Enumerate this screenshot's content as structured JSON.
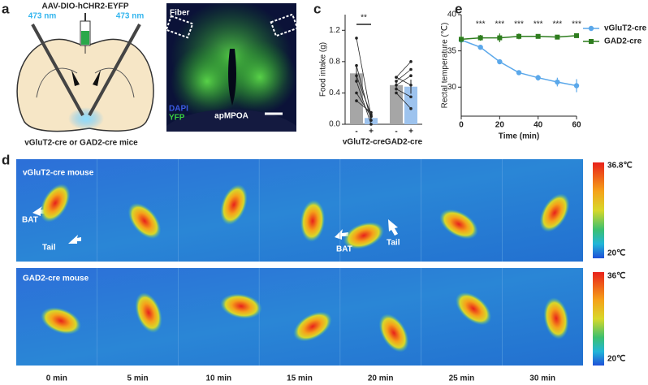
{
  "panel_labels": {
    "a": "a",
    "b": "b",
    "c": "c",
    "d": "d",
    "e": "e"
  },
  "panel_a": {
    "virus": "AAV-DIO-hCHR2-EYFP",
    "laser_left": "473 nm",
    "laser_right": "473 nm",
    "caption": "vGluT2-cre or GAD2-cre mice"
  },
  "panel_b": {
    "fiber": "Fiber",
    "dapi": "DAPI",
    "yfp": "YFP",
    "region": "apMPOA"
  },
  "chart_data": [
    {
      "type": "bar",
      "ylabel": "Food intake (g)",
      "categories": [
        "-",
        "+",
        "-",
        "+"
      ],
      "groups": [
        "vGluT2-cre",
        "GAD2-cre"
      ],
      "values": [
        0.65,
        0.08,
        0.5,
        0.48
      ],
      "errors": [
        0.09,
        0.02,
        0.05,
        0.09
      ],
      "colors": [
        "#a6a6a6",
        "#9dc3ee",
        "#a6a6a6",
        "#9dc3ee"
      ],
      "pairs": [
        [
          [
            1.1,
            0.1
          ],
          [
            0.75,
            0.05
          ],
          [
            0.62,
            0.12
          ],
          [
            0.55,
            0.0
          ],
          [
            0.4,
            0.1
          ],
          [
            0.3,
            0.15
          ]
        ],
        [
          [
            0.6,
            0.8
          ],
          [
            0.55,
            0.7
          ],
          [
            0.5,
            0.62
          ],
          [
            0.45,
            0.35
          ],
          [
            0.4,
            0.2
          ],
          [
            0.6,
            0.5
          ]
        ]
      ],
      "significance": "**",
      "ylim": [
        0,
        1.4
      ],
      "yticks": [
        {
          "value": 0,
          "label": "0.0"
        },
        {
          "value": 0.4,
          "label": "0.4"
        },
        {
          "value": 0.8,
          "label": "0.8"
        },
        {
          "value": 1.2,
          "label": "1.2"
        }
      ]
    },
    {
      "type": "line",
      "xlabel": "Time (min)",
      "ylabel": "Rectal temperature (℃)",
      "x": [
        0,
        10,
        20,
        30,
        40,
        50,
        60
      ],
      "series": [
        {
          "name": "vGluT2-cre",
          "color": "#5ba8ea",
          "marker": "circle",
          "values": [
            36.5,
            35.5,
            33.5,
            32.0,
            31.3,
            30.7,
            30.2
          ],
          "errors": [
            0.3,
            0.3,
            0.3,
            0.3,
            0.4,
            0.6,
            0.9
          ]
        },
        {
          "name": "GAD2-cre",
          "color": "#2e7d1e",
          "marker": "square",
          "values": [
            36.6,
            36.8,
            36.8,
            37.0,
            37.0,
            36.9,
            37.1
          ],
          "errors": [
            0.5,
            0.4,
            0.6,
            0.4,
            0.3,
            0.3,
            0.2
          ]
        }
      ],
      "stars": [
        {
          "x": 10,
          "label": "***"
        },
        {
          "x": 20,
          "label": "***"
        },
        {
          "x": 30,
          "label": "***"
        },
        {
          "x": 40,
          "label": "***"
        },
        {
          "x": 50,
          "label": "***"
        },
        {
          "x": 60,
          "label": "***"
        }
      ],
      "xlim": [
        0,
        60
      ],
      "ylim": [
        26,
        40
      ],
      "xticks": [
        0,
        20,
        40,
        60
      ],
      "yticks": [
        30,
        35,
        40
      ]
    }
  ],
  "panel_d": {
    "top_title": "vGluT2-cre mouse",
    "bottom_title": "GAD2-cre mouse",
    "arrows": [
      "BAT",
      "Tail",
      "BAT",
      "Tail"
    ],
    "top_scale": [
      "36.8℃",
      "20℃"
    ],
    "bottom_scale": [
      "36℃",
      "20℃"
    ],
    "time_labels": [
      "0 min",
      "5 min",
      "10 min",
      "15 min",
      "20 min",
      "25 min",
      "30 min"
    ]
  }
}
